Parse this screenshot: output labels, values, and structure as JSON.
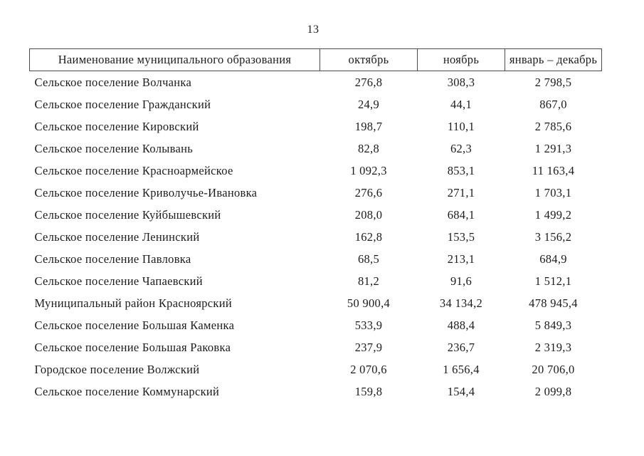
{
  "page": {
    "number": "13"
  },
  "table": {
    "headers": {
      "name": "Наименование муниципального образования",
      "october": "октябрь",
      "november": "ноябрь",
      "jan_dec": "январь – декабрь"
    },
    "rows": [
      {
        "name": "Сельское поселение Волчанка",
        "october": "276,8",
        "november": "308,3",
        "jan_dec": "2 798,5"
      },
      {
        "name": "Сельское поселение Гражданский",
        "october": "24,9",
        "november": "44,1",
        "jan_dec": "867,0"
      },
      {
        "name": "Сельское поселение Кировский",
        "october": "198,7",
        "november": "110,1",
        "jan_dec": "2 785,6"
      },
      {
        "name": "Сельское поселение Колывань",
        "october": "82,8",
        "november": "62,3",
        "jan_dec": "1 291,3"
      },
      {
        "name": "Сельское поселение Красноармейское",
        "october": "1 092,3",
        "november": "853,1",
        "jan_dec": "11 163,4"
      },
      {
        "name": "Сельское поселение Криволучье-Ивановка",
        "october": "276,6",
        "november": "271,1",
        "jan_dec": "1 703,1"
      },
      {
        "name": "Сельское поселение Куйбышевский",
        "october": "208,0",
        "november": "684,1",
        "jan_dec": "1 499,2"
      },
      {
        "name": "Сельское поселение Ленинский",
        "october": "162,8",
        "november": "153,5",
        "jan_dec": "3 156,2"
      },
      {
        "name": "Сельское поселение Павловка",
        "october": "68,5",
        "november": "213,1",
        "jan_dec": "684,9"
      },
      {
        "name": "Сельское поселение Чапаевский",
        "october": "81,2",
        "november": "91,6",
        "jan_dec": "1 512,1"
      },
      {
        "name": "Муниципальный район Красноярский",
        "october": "50 900,4",
        "november": "34 134,2",
        "jan_dec": "478 945,4"
      },
      {
        "name": "Сельское поселение Большая Каменка",
        "october": "533,9",
        "november": "488,4",
        "jan_dec": "5 849,3"
      },
      {
        "name": "Сельское поселение Большая Раковка",
        "october": "237,9",
        "november": "236,7",
        "jan_dec": "2 319,3"
      },
      {
        "name": "Городское поселение Волжский",
        "october": "2 070,6",
        "november": "1 656,4",
        "jan_dec": "20 706,0"
      },
      {
        "name": "Сельское поселение Коммунарский",
        "october": "159,8",
        "november": "154,4",
        "jan_dec": "2 099,8"
      }
    ]
  }
}
